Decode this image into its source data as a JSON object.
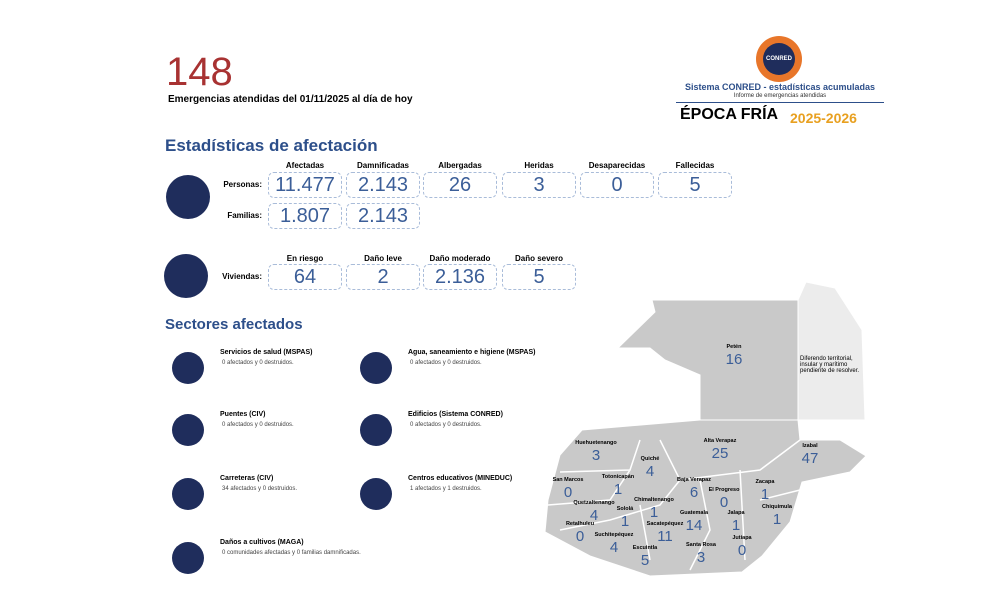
{
  "header": {
    "count": "148",
    "subtitle": "Emergencias atendidas del 01/11/2025 al día de hoy"
  },
  "logo": {
    "badge": "CONRED",
    "system": "Sistema CONRED - estadísticas acumuladas",
    "report": "Informe de emergencias atendidas",
    "season": "ÉPOCA FRÍA",
    "years": "2025-2026"
  },
  "stats": {
    "title": "Estadísticas de afectación",
    "columns": [
      "Afectadas",
      "Damnificadas",
      "Albergadas",
      "Heridas",
      "Desaparecidas",
      "Fallecidas"
    ],
    "rows": [
      {
        "label": "Personas:",
        "values": [
          "11.477",
          "2.143",
          "26",
          "3",
          "0",
          "5"
        ]
      },
      {
        "label": "Familias:",
        "values": [
          "1.807",
          "2.143"
        ]
      }
    ]
  },
  "housing": {
    "label": "Viviendas:",
    "columns": [
      "En riesgo",
      "Daño leve",
      "Daño moderado",
      "Daño severo"
    ],
    "values": [
      "64",
      "2",
      "2.136",
      "5"
    ]
  },
  "sectors": {
    "title": "Sectores afectados",
    "items": [
      {
        "name": "Servicios de salud (MSPAS)",
        "detail": "0 afectados y 0 destruidos."
      },
      {
        "name": "Agua, saneamiento e higiene (MSPAS)",
        "detail": "0 afectados y 0 destruidos."
      },
      {
        "name": "Puentes (CIV)",
        "detail": "0 afectados y 0 destruidos."
      },
      {
        "name": "Edificios (Sistema CONRED)",
        "detail": "0 afectados y 0 destruidos."
      },
      {
        "name": "Carreteras (CIV)",
        "detail": "34 afectados y 0 destruidos."
      },
      {
        "name": "Centros educativos (MINEDUC)",
        "detail": "1 afectados y 1 destruidos."
      },
      {
        "name": "Daños a cultivos (MAGA)",
        "detail": "0 comunidades afectadas y 0 familias damnificadas."
      }
    ]
  },
  "map": {
    "note": "Diferendo territorial, insular y marítimo pendiente de resolver.",
    "departments": [
      {
        "name": "Petén",
        "value": "16"
      },
      {
        "name": "Huehuetenango",
        "value": "3"
      },
      {
        "name": "Quiché",
        "value": "4"
      },
      {
        "name": "Alta Verapaz",
        "value": "25"
      },
      {
        "name": "Izabal",
        "value": "47"
      },
      {
        "name": "San Marcos",
        "value": "0"
      },
      {
        "name": "Totonicapán",
        "value": "1"
      },
      {
        "name": "Baja Verapaz",
        "value": "6"
      },
      {
        "name": "El Progreso",
        "value": "0"
      },
      {
        "name": "Zacapa",
        "value": "1"
      },
      {
        "name": "Quetzaltenango",
        "value": "4"
      },
      {
        "name": "Sololá",
        "value": "1"
      },
      {
        "name": "Chimaltenango",
        "value": "1"
      },
      {
        "name": "Guatemala",
        "value": "14"
      },
      {
        "name": "Jalapa",
        "value": "1"
      },
      {
        "name": "Chiquimula",
        "value": "1"
      },
      {
        "name": "Retalhuleu",
        "value": "0"
      },
      {
        "name": "Suchitepéquez",
        "value": "4"
      },
      {
        "name": "Sacatepéquez",
        "value": "11"
      },
      {
        "name": "Escuintla",
        "value": "5"
      },
      {
        "name": "Santa Rosa",
        "value": "3"
      },
      {
        "name": "Jutiapa",
        "value": "0"
      }
    ]
  }
}
